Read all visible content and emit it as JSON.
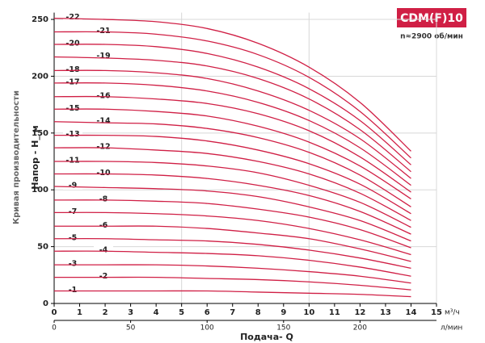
{
  "chart_data": {
    "type": "line",
    "badge": "CDM(F)10",
    "subtitle": "n≈2900 об/мин",
    "side_label": "Кривая производительности",
    "ylabel": "Напор - H_ м",
    "xlabel": "Подача- Q",
    "x_unit": "м³/ч",
    "x2_unit": "л/мин",
    "color": "#d01f45",
    "grid": true,
    "xlim": [
      0,
      15
    ],
    "xticks": [
      0,
      1,
      2,
      3,
      4,
      5,
      6,
      7,
      8,
      9,
      10,
      11,
      12,
      13,
      14,
      15
    ],
    "x2lim": [
      0,
      250
    ],
    "x2ticks": [
      0,
      50,
      100,
      150,
      200
    ],
    "ylim": [
      0,
      256
    ],
    "yticks": [
      0,
      50,
      100,
      150,
      200,
      250
    ],
    "x": [
      0,
      2,
      4,
      6,
      8,
      10,
      12,
      14
    ],
    "series": [
      {
        "name": "-1",
        "values": [
          11,
          11,
          11,
          11,
          10,
          9,
          8,
          6
        ]
      },
      {
        "name": "-2",
        "values": [
          23,
          23,
          23,
          22,
          21,
          19,
          16,
          12
        ]
      },
      {
        "name": "-3",
        "values": [
          34,
          34,
          34,
          33,
          31,
          28,
          24,
          18
        ]
      },
      {
        "name": "-4",
        "values": [
          46,
          46,
          45,
          44,
          42,
          38,
          32,
          24
        ]
      },
      {
        "name": "-5",
        "values": [
          57,
          57,
          56,
          55,
          52,
          47,
          40,
          31
        ]
      },
      {
        "name": "-6",
        "values": [
          68,
          68,
          68,
          66,
          62,
          57,
          48,
          37
        ]
      },
      {
        "name": "-7",
        "values": [
          80,
          80,
          79,
          77,
          73,
          66,
          56,
          43
        ]
      },
      {
        "name": "-8",
        "values": [
          91,
          91,
          90,
          88,
          83,
          76,
          65,
          49
        ]
      },
      {
        "name": "-9",
        "values": [
          103,
          102,
          101,
          99,
          94,
          85,
          73,
          55
        ]
      },
      {
        "name": "-10",
        "values": [
          114,
          114,
          113,
          110,
          104,
          95,
          81,
          61
        ]
      },
      {
        "name": "-11",
        "values": [
          125,
          125,
          124,
          121,
          115,
          104,
          89,
          67
        ]
      },
      {
        "name": "-12",
        "values": [
          137,
          137,
          135,
          132,
          125,
          114,
          97,
          73
        ]
      },
      {
        "name": "-13",
        "values": [
          148,
          148,
          147,
          143,
          135,
          123,
          105,
          79
        ]
      },
      {
        "name": "-14",
        "values": [
          160,
          159,
          158,
          154,
          146,
          133,
          113,
          85
        ]
      },
      {
        "name": "-15",
        "values": [
          171,
          171,
          169,
          165,
          156,
          142,
          121,
          92
        ]
      },
      {
        "name": "-16",
        "values": [
          182,
          182,
          180,
          176,
          167,
          152,
          129,
          98
        ]
      },
      {
        "name": "-17",
        "values": [
          194,
          194,
          192,
          187,
          177,
          161,
          137,
          104
        ]
      },
      {
        "name": "-18",
        "values": [
          205,
          205,
          203,
          198,
          187,
          170,
          145,
          110
        ]
      },
      {
        "name": "-19",
        "values": [
          217,
          216,
          214,
          209,
          198,
          180,
          153,
          116
        ]
      },
      {
        "name": "-20",
        "values": [
          228,
          228,
          226,
          220,
          208,
          189,
          161,
          122
        ]
      },
      {
        "name": "-21",
        "values": [
          239,
          239,
          237,
          231,
          219,
          199,
          169,
          128
        ]
      },
      {
        "name": "-22",
        "values": [
          251,
          250,
          248,
          242,
          229,
          208,
          177,
          134
        ]
      }
    ]
  }
}
